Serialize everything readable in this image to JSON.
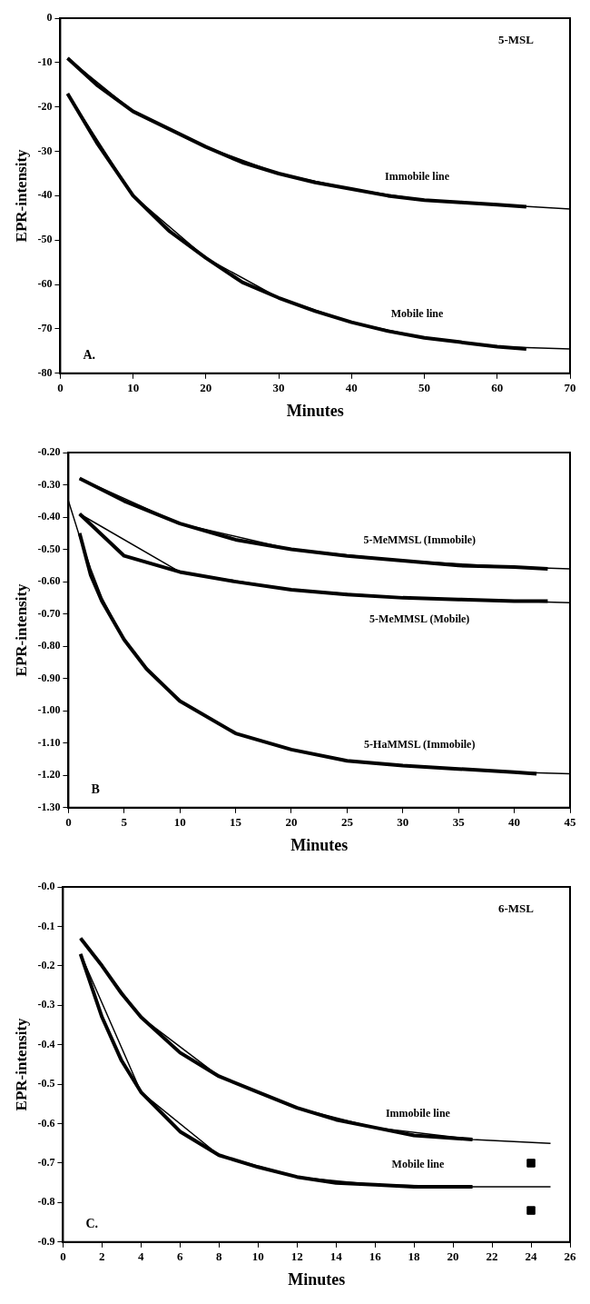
{
  "chart_data": [
    {
      "type": "line",
      "title": "5-MSL",
      "xlabel": "Minutes",
      "ylabel": "EPR-intensity",
      "xlim": [
        0,
        70
      ],
      "xticks": [
        0,
        10,
        20,
        30,
        40,
        50,
        60,
        70
      ],
      "ylim": [
        -80,
        0
      ],
      "yticks": [
        {
          "value": -80,
          "label": "-80"
        },
        {
          "value": -70,
          "label": "-70"
        },
        {
          "value": -60,
          "label": "-60"
        },
        {
          "value": -50,
          "label": "-50"
        },
        {
          "value": -40,
          "label": "-40"
        },
        {
          "value": -30,
          "label": "-30"
        },
        {
          "value": -20,
          "label": "-20"
        },
        {
          "value": -10,
          "label": "-10"
        },
        0
      ],
      "grid": false,
      "legend": false,
      "marker": "none",
      "line_style": "solid",
      "annotations": [
        "A."
      ],
      "series": [
        {
          "name": "Immobile line",
          "color": "#000000",
          "x": [
            1,
            5,
            10,
            15,
            20,
            25,
            30,
            35,
            40,
            45,
            50,
            55,
            60,
            64
          ],
          "values": [
            -9,
            -15,
            -21,
            -25,
            -29,
            -32.5,
            -35,
            -37,
            -38.5,
            -40,
            -41,
            -41.5,
            -42,
            -42.5
          ]
        },
        {
          "color": "#000000",
          "x": [
            1,
            10,
            20,
            30,
            40,
            50,
            60,
            70
          ],
          "values": [
            -9,
            -21,
            -29,
            -35,
            -38.5,
            -41,
            -42,
            -43
          ]
        },
        {
          "name": "Mobile line",
          "color": "#000000",
          "x": [
            1,
            5,
            10,
            15,
            20,
            25,
            30,
            35,
            40,
            45,
            50,
            55,
            60,
            64
          ],
          "values": [
            -17,
            -28,
            -40,
            -48,
            -54,
            -59.5,
            -63,
            -66,
            -68.5,
            -70.5,
            -72,
            -73,
            -74,
            -74.5
          ]
        },
        {
          "color": "#000000",
          "x": [
            1,
            10,
            20,
            30,
            40,
            50,
            60,
            70
          ],
          "values": [
            -17,
            -40,
            -54,
            -63,
            -68.5,
            -72,
            -74,
            -74.5
          ]
        }
      ]
    },
    {
      "type": "line",
      "xlabel": "Minutes",
      "ylabel": "EPR-intensity",
      "xlim": [
        0,
        45
      ],
      "xticks": [
        0,
        5,
        10,
        15,
        20,
        25,
        30,
        35,
        40,
        45
      ],
      "ylim": [
        -1.3,
        -0.2
      ],
      "yticks": [
        {
          "value": -1.3,
          "label": "-1.30"
        },
        {
          "value": -1.2,
          "label": "-1.20"
        },
        {
          "value": -1.1,
          "label": "-1.10"
        },
        {
          "value": -1,
          "label": "-1.00"
        },
        {
          "value": -0.9,
          "label": "-0.90"
        },
        {
          "value": -0.8,
          "label": "-0.80"
        },
        {
          "value": -0.7,
          "label": "-0.70"
        },
        {
          "value": -0.6,
          "label": "-0.60"
        },
        {
          "value": -0.5,
          "label": "-0.50"
        },
        {
          "value": -0.4,
          "label": "-0.40"
        },
        {
          "value": -0.3,
          "label": "-0.30"
        },
        {
          "value": -0.2,
          "label": "-0.20"
        }
      ],
      "grid": false,
      "legend": false,
      "marker": "none",
      "line_style": "solid",
      "annotations": [
        "B"
      ],
      "series": [
        {
          "name": "5-MeMMSL (Immobile)",
          "color": "#000000",
          "x": [
            1,
            5,
            10,
            15,
            20,
            25,
            30,
            35,
            40,
            43
          ],
          "values": [
            -0.28,
            -0.35,
            -0.42,
            -0.47,
            -0.5,
            -0.52,
            -0.535,
            -0.55,
            -0.555,
            -0.56
          ]
        },
        {
          "color": "#000000",
          "x": [
            1,
            10,
            20,
            30,
            40,
            45
          ],
          "values": [
            -0.28,
            -0.42,
            -0.5,
            -0.535,
            -0.555,
            -0.56
          ]
        },
        {
          "name": "5-MeMMSL (Mobile)",
          "color": "#000000",
          "x": [
            1,
            5,
            10,
            15,
            20,
            25,
            30,
            35,
            40,
            43
          ],
          "values": [
            -0.39,
            -0.52,
            -0.57,
            -0.6,
            -0.625,
            -0.64,
            -0.65,
            -0.655,
            -0.66,
            -0.66
          ]
        },
        {
          "color": "#000000",
          "x": [
            1,
            10,
            20,
            30,
            40,
            45
          ],
          "values": [
            -0.39,
            -0.57,
            -0.625,
            -0.65,
            -0.66,
            -0.665
          ]
        },
        {
          "name": "5-HaMMSL (Immobile)",
          "color": "#000000",
          "x": [
            1,
            2,
            3,
            5,
            7,
            10,
            15,
            20,
            25,
            30,
            35,
            40,
            42
          ],
          "values": [
            -0.45,
            -0.58,
            -0.66,
            -0.78,
            -0.87,
            -0.97,
            -1.07,
            -1.12,
            -1.155,
            -1.17,
            -1.18,
            -1.19,
            -1.195
          ]
        },
        {
          "color": "#000000",
          "x": [
            0,
            1,
            2,
            3,
            5,
            7,
            10,
            15,
            20,
            25,
            30,
            35,
            40,
            45
          ],
          "values": [
            -0.35,
            -0.46,
            -0.56,
            -0.65,
            -0.78,
            -0.87,
            -0.97,
            -1.07,
            -1.12,
            -1.155,
            -1.17,
            -1.18,
            -1.19,
            -1.195
          ]
        }
      ]
    },
    {
      "type": "line",
      "title": "6-MSL",
      "xlabel": "Minutes",
      "ylabel": "EPR-intensity",
      "xlim": [
        0,
        26
      ],
      "xticks": [
        0,
        2,
        4,
        6,
        8,
        10,
        12,
        14,
        16,
        18,
        20,
        22,
        24,
        26
      ],
      "ylim": [
        -0.9,
        0
      ],
      "yticks": [
        {
          "value": -0.9,
          "label": "-0.9"
        },
        {
          "value": -0.8,
          "label": "-0.8"
        },
        {
          "value": -0.7,
          "label": "-0.7"
        },
        {
          "value": -0.6,
          "label": "-0.6"
        },
        {
          "value": -0.5,
          "label": "-0.5"
        },
        {
          "value": -0.4,
          "label": "-0.4"
        },
        {
          "value": -0.3,
          "label": "-0.3"
        },
        {
          "value": -0.2,
          "label": "-0.2"
        },
        {
          "value": -0.1,
          "label": "-0.1"
        },
        {
          "value": 0,
          "label": "-0.0"
        }
      ],
      "grid": false,
      "legend": false,
      "marker": "none",
      "line_style": "solid",
      "annotations": [
        "C."
      ],
      "series": [
        {
          "name": "Immobile line",
          "color": "#000000",
          "x": [
            0.9,
            2,
            3,
            4,
            6,
            8,
            10,
            12,
            14,
            16,
            18,
            21
          ],
          "values": [
            -0.13,
            -0.2,
            -0.27,
            -0.33,
            -0.42,
            -0.48,
            -0.52,
            -0.56,
            -0.59,
            -0.61,
            -0.63,
            -0.64
          ]
        },
        {
          "color": "#000000",
          "x": [
            0.9,
            4,
            8,
            12,
            16,
            21,
            25
          ],
          "values": [
            -0.13,
            -0.33,
            -0.48,
            -0.56,
            -0.61,
            -0.64,
            -0.65
          ]
        },
        {
          "name": "Mobile line",
          "color": "#000000",
          "x": [
            0.9,
            2,
            3,
            4,
            6,
            8,
            10,
            12,
            14,
            16,
            18,
            21
          ],
          "values": [
            -0.17,
            -0.33,
            -0.44,
            -0.52,
            -0.62,
            -0.68,
            -0.71,
            -0.735,
            -0.75,
            -0.755,
            -0.76,
            -0.76
          ]
        },
        {
          "color": "#000000",
          "x": [
            0.9,
            4,
            8,
            12,
            16,
            21,
            25
          ],
          "values": [
            -0.17,
            -0.52,
            -0.68,
            -0.735,
            -0.755,
            -0.76,
            -0.76
          ]
        },
        {
          "type": "scatter",
          "marker": "square",
          "color": "#000000",
          "x": [
            24,
            24
          ],
          "values": [
            -0.7,
            -0.82
          ]
        }
      ]
    }
  ]
}
